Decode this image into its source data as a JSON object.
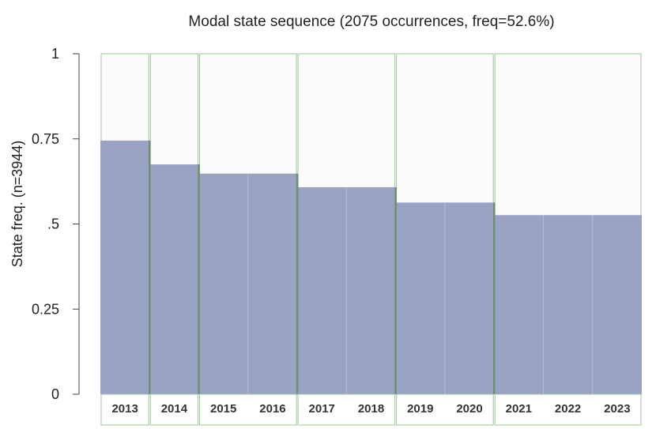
{
  "chart_data": {
    "type": "bar",
    "title": "Modal state sequence (2075 occurrences, freq=52.6%)",
    "ylabel": "State freq. (n=3944)",
    "xlabel": "",
    "ylim": [
      0,
      1
    ],
    "yticks": [
      {
        "value": 0,
        "label": "0"
      },
      {
        "value": 0.25,
        "label": "0.25"
      },
      {
        "value": 0.5,
        "label": ".5"
      },
      {
        "value": 0.75,
        "label": "0.75"
      },
      {
        "value": 1,
        "label": "1"
      }
    ],
    "categories": [
      "2013",
      "2014",
      "2015",
      "2016",
      "2017",
      "2018",
      "2019",
      "2020",
      "2021",
      "2022",
      "2023"
    ],
    "values": [
      0.745,
      0.675,
      0.648,
      0.648,
      0.608,
      0.608,
      0.563,
      0.563,
      0.526,
      0.526,
      0.526
    ],
    "spells": [
      {
        "start": 0,
        "end": 0
      },
      {
        "start": 1,
        "end": 1
      },
      {
        "start": 2,
        "end": 3
      },
      {
        "start": 4,
        "end": 5
      },
      {
        "start": 6,
        "end": 7
      },
      {
        "start": 8,
        "end": 10
      }
    ],
    "colors": {
      "bar": "#9aa3c4",
      "bar_divider": "#b7bdd6",
      "spell_border": "#9cc49c",
      "spell_divider": "#6f8f6f",
      "background": "#fbfbfb",
      "axis": "#444444"
    },
    "grid": false,
    "legend": "none"
  }
}
